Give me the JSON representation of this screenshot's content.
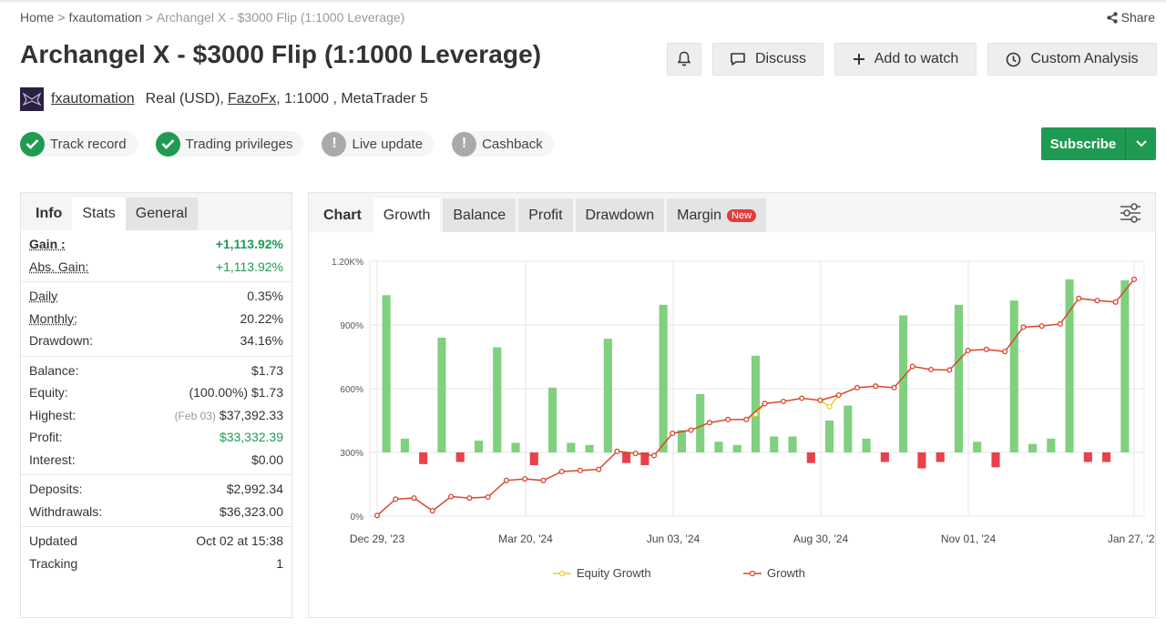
{
  "breadcrumb": {
    "home": "Home",
    "sep": ">",
    "section": "fxautomation",
    "current": "Archangel X - $3000 Flip (1:1000 Leverage)"
  },
  "share_label": "Share",
  "title": "Archangel X - $3000 Flip (1:1000 Leverage)",
  "actions": {
    "discuss": "Discuss",
    "watch": "Add to watch",
    "custom": "Custom Analysis"
  },
  "meta": {
    "user": "fxautomation",
    "account": "Real (USD),",
    "broker": "FazoFx",
    "rest": ", 1:1000 , MetaTrader 5"
  },
  "badges": [
    {
      "label": "Track record",
      "status": "ok"
    },
    {
      "label": "Trading privileges",
      "status": "ok"
    },
    {
      "label": "Live update",
      "status": "warn"
    },
    {
      "label": "Cashback",
      "status": "warn"
    }
  ],
  "subscribe": "Subscribe",
  "left_tabs": {
    "info": "Info",
    "stats": "Stats",
    "general": "General"
  },
  "stats": {
    "gain_k": "Gain :",
    "gain_v": "+1,113.92%",
    "abs_k": "Abs. Gain:",
    "abs_v": "+1,113.92%",
    "daily_k": "Daily",
    "daily_v": "0.35%",
    "monthly_k": "Monthly:",
    "monthly_v": "20.22%",
    "drawdown_k": "Drawdown:",
    "drawdown_v": "34.16%",
    "balance_k": "Balance:",
    "balance_v": "$1.73",
    "equity_k": "Equity:",
    "equity_v": "(100.00%) $1.73",
    "highest_k": "Highest:",
    "highest_date": "(Feb 03)",
    "highest_v": "$37,392.33",
    "profit_k": "Profit:",
    "profit_v": "$33,332.39",
    "interest_k": "Interest:",
    "interest_v": "$0.00",
    "deposits_k": "Deposits:",
    "deposits_v": "$2,992.34",
    "withdrawals_k": "Withdrawals:",
    "withdrawals_v": "$36,323.00",
    "updated_k": "Updated",
    "updated_v": "Oct 02 at 15:38",
    "tracking_k": "Tracking",
    "tracking_v": "1"
  },
  "chart_tabs": {
    "chart": "Chart",
    "growth": "Growth",
    "balance": "Balance",
    "profit": "Profit",
    "drawdown": "Drawdown",
    "margin": "Margin",
    "new": "New"
  },
  "colors": {
    "green": "#1f9a53",
    "bar_pos": "#7fd07f",
    "bar_neg": "#e8414b",
    "line": "#d9472b",
    "equity": "#e6cf2a"
  },
  "chart_data": {
    "type": "bar",
    "ylim": [
      0,
      1200
    ],
    "yticks": [
      "0%",
      "300%",
      "600%",
      "900%",
      "1.20K%"
    ],
    "xticks": [
      "Dec 29, '23",
      "Mar 20, '24",
      "Jun 03, '24",
      "Aug 30, '24",
      "Nov 01, '24",
      "Jan 27, '25"
    ],
    "bar_baseline": 300,
    "bars": [
      1040,
      365,
      245,
      840,
      255,
      355,
      795,
      345,
      240,
      605,
      345,
      335,
      835,
      250,
      240,
      995,
      405,
      575,
      350,
      335,
      755,
      375,
      375,
      250,
      450,
      520,
      365,
      255,
      945,
      225,
      255,
      995,
      350,
      230,
      1015,
      340,
      365,
      1115,
      255,
      255,
      1110
    ],
    "growth": [
      3,
      80,
      85,
      25,
      92,
      85,
      90,
      168,
      175,
      168,
      210,
      215,
      220,
      305,
      295,
      285,
      390,
      405,
      440,
      455,
      455,
      530,
      540,
      555,
      545,
      570,
      605,
      612,
      605,
      705,
      690,
      688,
      780,
      785,
      775,
      890,
      895,
      905,
      1025,
      1015,
      1008,
      1115
    ],
    "equity_segments": [
      [
        20,
        21,
        480
      ],
      [
        24,
        25,
        515
      ]
    ],
    "legend": [
      "Equity Growth",
      "Growth"
    ]
  }
}
